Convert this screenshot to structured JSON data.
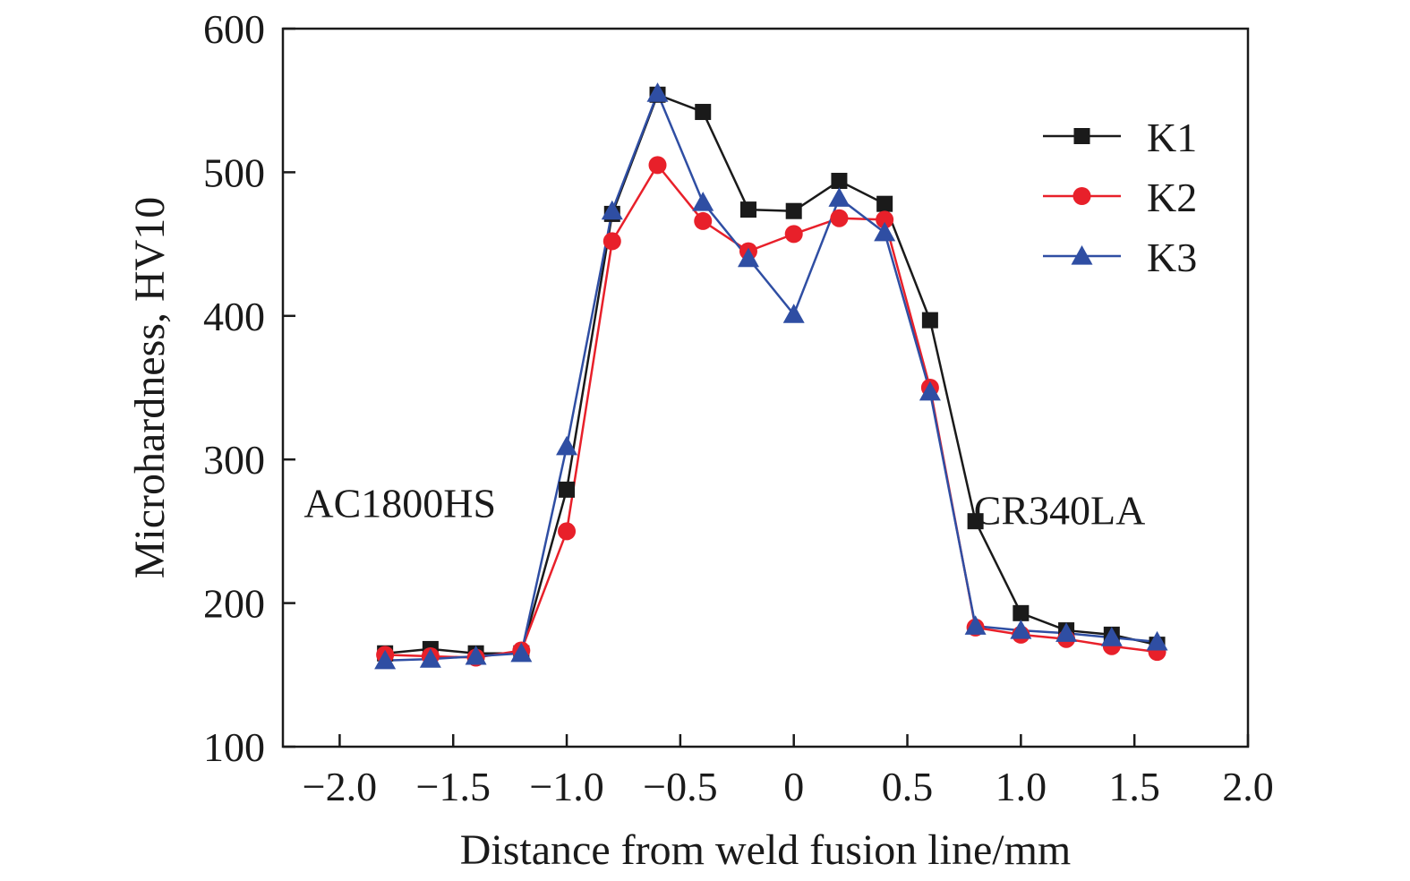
{
  "chart_data": {
    "type": "line",
    "title": "",
    "xlabel": "Distance from weld fusion line/mm",
    "ylabel": "Microhardness, HV10",
    "xlim": [
      -2.25,
      2.0
    ],
    "ylim": [
      100,
      600
    ],
    "xticks": [
      -2.0,
      -1.5,
      -1.0,
      -0.5,
      0,
      0.5,
      1.0,
      1.5,
      2.0
    ],
    "xtick_labels": [
      "−2.0",
      "−1.5",
      "−1.0",
      "−0.5",
      "0",
      "0.5",
      "1.0",
      "1.5",
      "2.0"
    ],
    "yticks": [
      100,
      200,
      300,
      400,
      500,
      600
    ],
    "ytick_labels": [
      "100",
      "200",
      "300",
      "400",
      "500",
      "600"
    ],
    "grid": false,
    "legend_position": "top-right",
    "x": [
      -1.8,
      -1.6,
      -1.4,
      -1.2,
      -1.0,
      -0.8,
      -0.6,
      -0.4,
      -0.2,
      0,
      0.2,
      0.4,
      0.6,
      0.8,
      1.0,
      1.2,
      1.4,
      1.6
    ],
    "series": [
      {
        "name": "K1",
        "marker": "square",
        "color": "#1a1a1a",
        "values": [
          165,
          168,
          165,
          165,
          279,
          471,
          554,
          542,
          474,
          473,
          494,
          478,
          397,
          257,
          193,
          181,
          178,
          171
        ]
      },
      {
        "name": "K2",
        "marker": "circle",
        "color": "#e8202a",
        "values": [
          164,
          163,
          162,
          167,
          250,
          452,
          505,
          466,
          445,
          457,
          468,
          467,
          350,
          183,
          178,
          175,
          170,
          166
        ]
      },
      {
        "name": "K3",
        "marker": "triangle",
        "color": "#2f4ea3",
        "values": [
          160,
          161,
          163,
          165,
          309,
          473,
          555,
          479,
          440,
          401,
          482,
          458,
          347,
          184,
          181,
          179,
          176,
          173
        ]
      }
    ],
    "annotations": [
      {
        "text": "AC1800HS",
        "x": -2.0,
        "y": 270
      },
      {
        "text": "CR340LA",
        "x": 0.95,
        "y": 265
      }
    ]
  }
}
